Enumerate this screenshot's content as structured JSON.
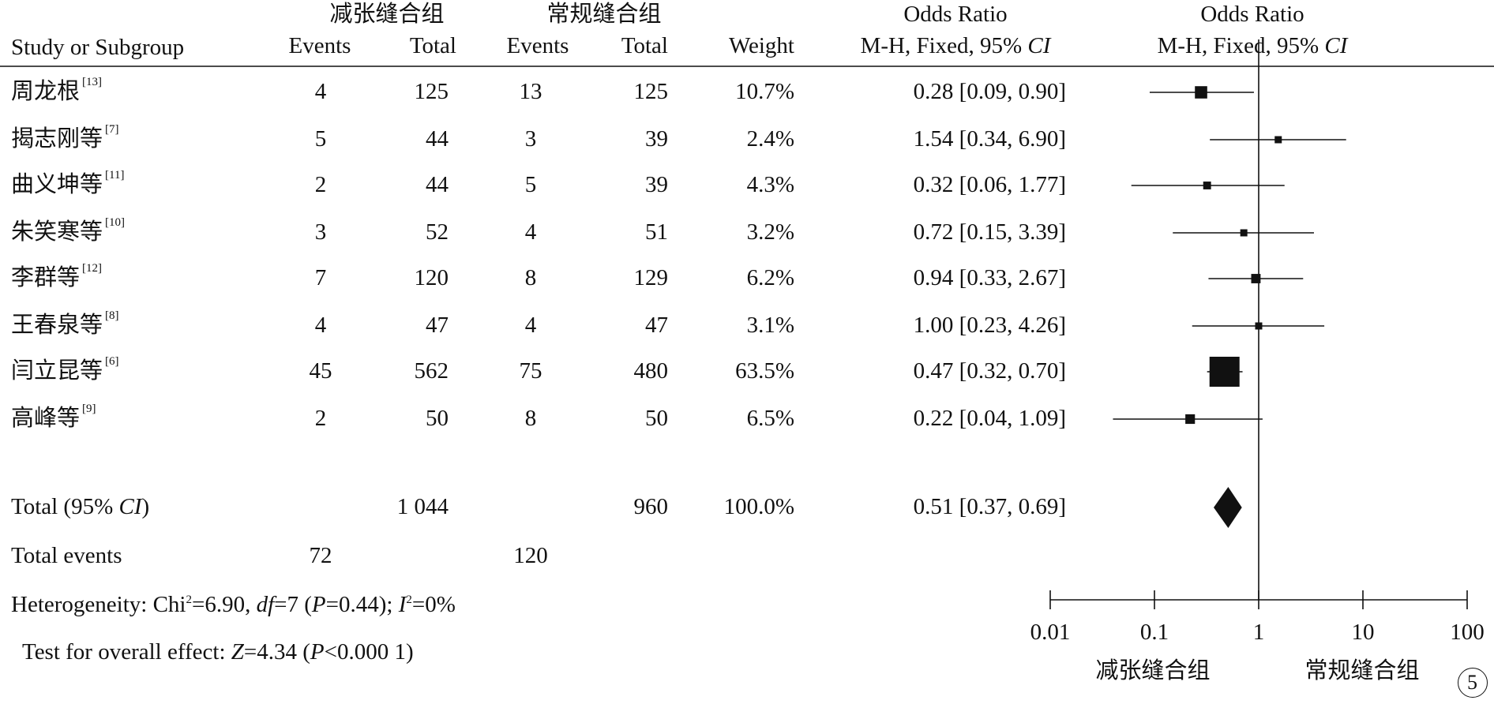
{
  "header": {
    "group1_name": "减张缝合组",
    "group2_name": "常规缝合组",
    "study_col": "Study or Subgroup",
    "events_col": "Events",
    "total_col": "Total",
    "weight_col": "Weight",
    "or_col_title": "Odds Ratio",
    "or_col_method": "M-H, Fixed, 95% ",
    "or_col_ci": "CI",
    "plot_col_title": "Odds Ratio",
    "plot_col_method": "M-H, Fixed, 95% ",
    "plot_col_ci": "CI"
  },
  "rows": [
    {
      "study": "周龙根",
      "ref": "[13]",
      "e1": "4",
      "t1": "125",
      "e2": "13",
      "t2": "125",
      "weight": "10.7%",
      "or_text": "0.28 [0.09, 0.90]"
    },
    {
      "study": "揭志刚等",
      "ref": "[7]",
      "e1": "5",
      "t1": "44",
      "e2": "3",
      "t2": "39",
      "weight": "2.4%",
      "or_text": "1.54 [0.34, 6.90]"
    },
    {
      "study": "曲义坤等",
      "ref": "[11]",
      "e1": "2",
      "t1": "44",
      "e2": "5",
      "t2": "39",
      "weight": "4.3%",
      "or_text": "0.32 [0.06, 1.77]"
    },
    {
      "study": "朱笑寒等",
      "ref": "[10]",
      "e1": "3",
      "t1": "52",
      "e2": "4",
      "t2": "51",
      "weight": "3.2%",
      "or_text": "0.72 [0.15, 3.39]"
    },
    {
      "study": "李群等",
      "ref": "[12]",
      "e1": "7",
      "t1": "120",
      "e2": "8",
      "t2": "129",
      "weight": "6.2%",
      "or_text": "0.94 [0.33, 2.67]"
    },
    {
      "study": "王春泉等",
      "ref": "[8]",
      "e1": "4",
      "t1": "47",
      "e2": "4",
      "t2": "47",
      "weight": "3.1%",
      "or_text": "1.00 [0.23, 4.26]"
    },
    {
      "study": "闫立昆等",
      "ref": "[6]",
      "e1": "45",
      "t1": "562",
      "e2": "75",
      "t2": "480",
      "weight": "63.5%",
      "or_text": "0.47 [0.32, 0.70]"
    },
    {
      "study": "高峰等",
      "ref": "[9]",
      "e1": "2",
      "t1": "50",
      "e2": "8",
      "t2": "50",
      "weight": "6.5%",
      "or_text": "0.22 [0.04, 1.09]"
    }
  ],
  "total": {
    "label_pre": "Total (95% ",
    "label_ci": "CI",
    "label_post": ")",
    "t1": "1 044",
    "t2": "960",
    "weight": "100.0%",
    "or_text": "0.51 [0.37, 0.69]"
  },
  "total_events": {
    "label": "Total events",
    "e1": "72",
    "e2": "120"
  },
  "heterogeneity": {
    "p1": "Heterogeneity: Chi",
    "sup1": "2",
    "p2": "=6.90, ",
    "df": "df",
    "p3": "=7 (",
    "P": "P",
    "p4": "=0.44); ",
    "I": "I",
    "sup2": "2",
    "p5": "=0%"
  },
  "overall_effect": {
    "p1": "Test for overall effect: ",
    "Z": "Z",
    "p2": "=4.34 (",
    "P": "P",
    "p3": "<0.000 1)"
  },
  "axis": {
    "favours_left": "减张缝合组",
    "favours_right": "常规缝合组"
  },
  "panel_number": "5",
  "chart_data": {
    "type": "forest",
    "x_scale": "log",
    "xlim": [
      0.01,
      100
    ],
    "x_ticks": [
      "0.01",
      "0.1",
      "1",
      "10",
      "100"
    ],
    "reference_line": 1,
    "studies": [
      {
        "or": 0.28,
        "lo": 0.09,
        "hi": 0.9,
        "weight": 10.7
      },
      {
        "or": 1.54,
        "lo": 0.34,
        "hi": 6.9,
        "weight": 2.4
      },
      {
        "or": 0.32,
        "lo": 0.06,
        "hi": 1.77,
        "weight": 4.3
      },
      {
        "or": 0.72,
        "lo": 0.15,
        "hi": 3.39,
        "weight": 3.2
      },
      {
        "or": 0.94,
        "lo": 0.33,
        "hi": 2.67,
        "weight": 6.2
      },
      {
        "or": 1.0,
        "lo": 0.23,
        "hi": 4.26,
        "weight": 3.1
      },
      {
        "or": 0.47,
        "lo": 0.32,
        "hi": 0.7,
        "weight": 63.5
      },
      {
        "or": 0.22,
        "lo": 0.04,
        "hi": 1.09,
        "weight": 6.5
      }
    ],
    "pooled": {
      "or": 0.51,
      "lo": 0.37,
      "hi": 0.69
    }
  }
}
